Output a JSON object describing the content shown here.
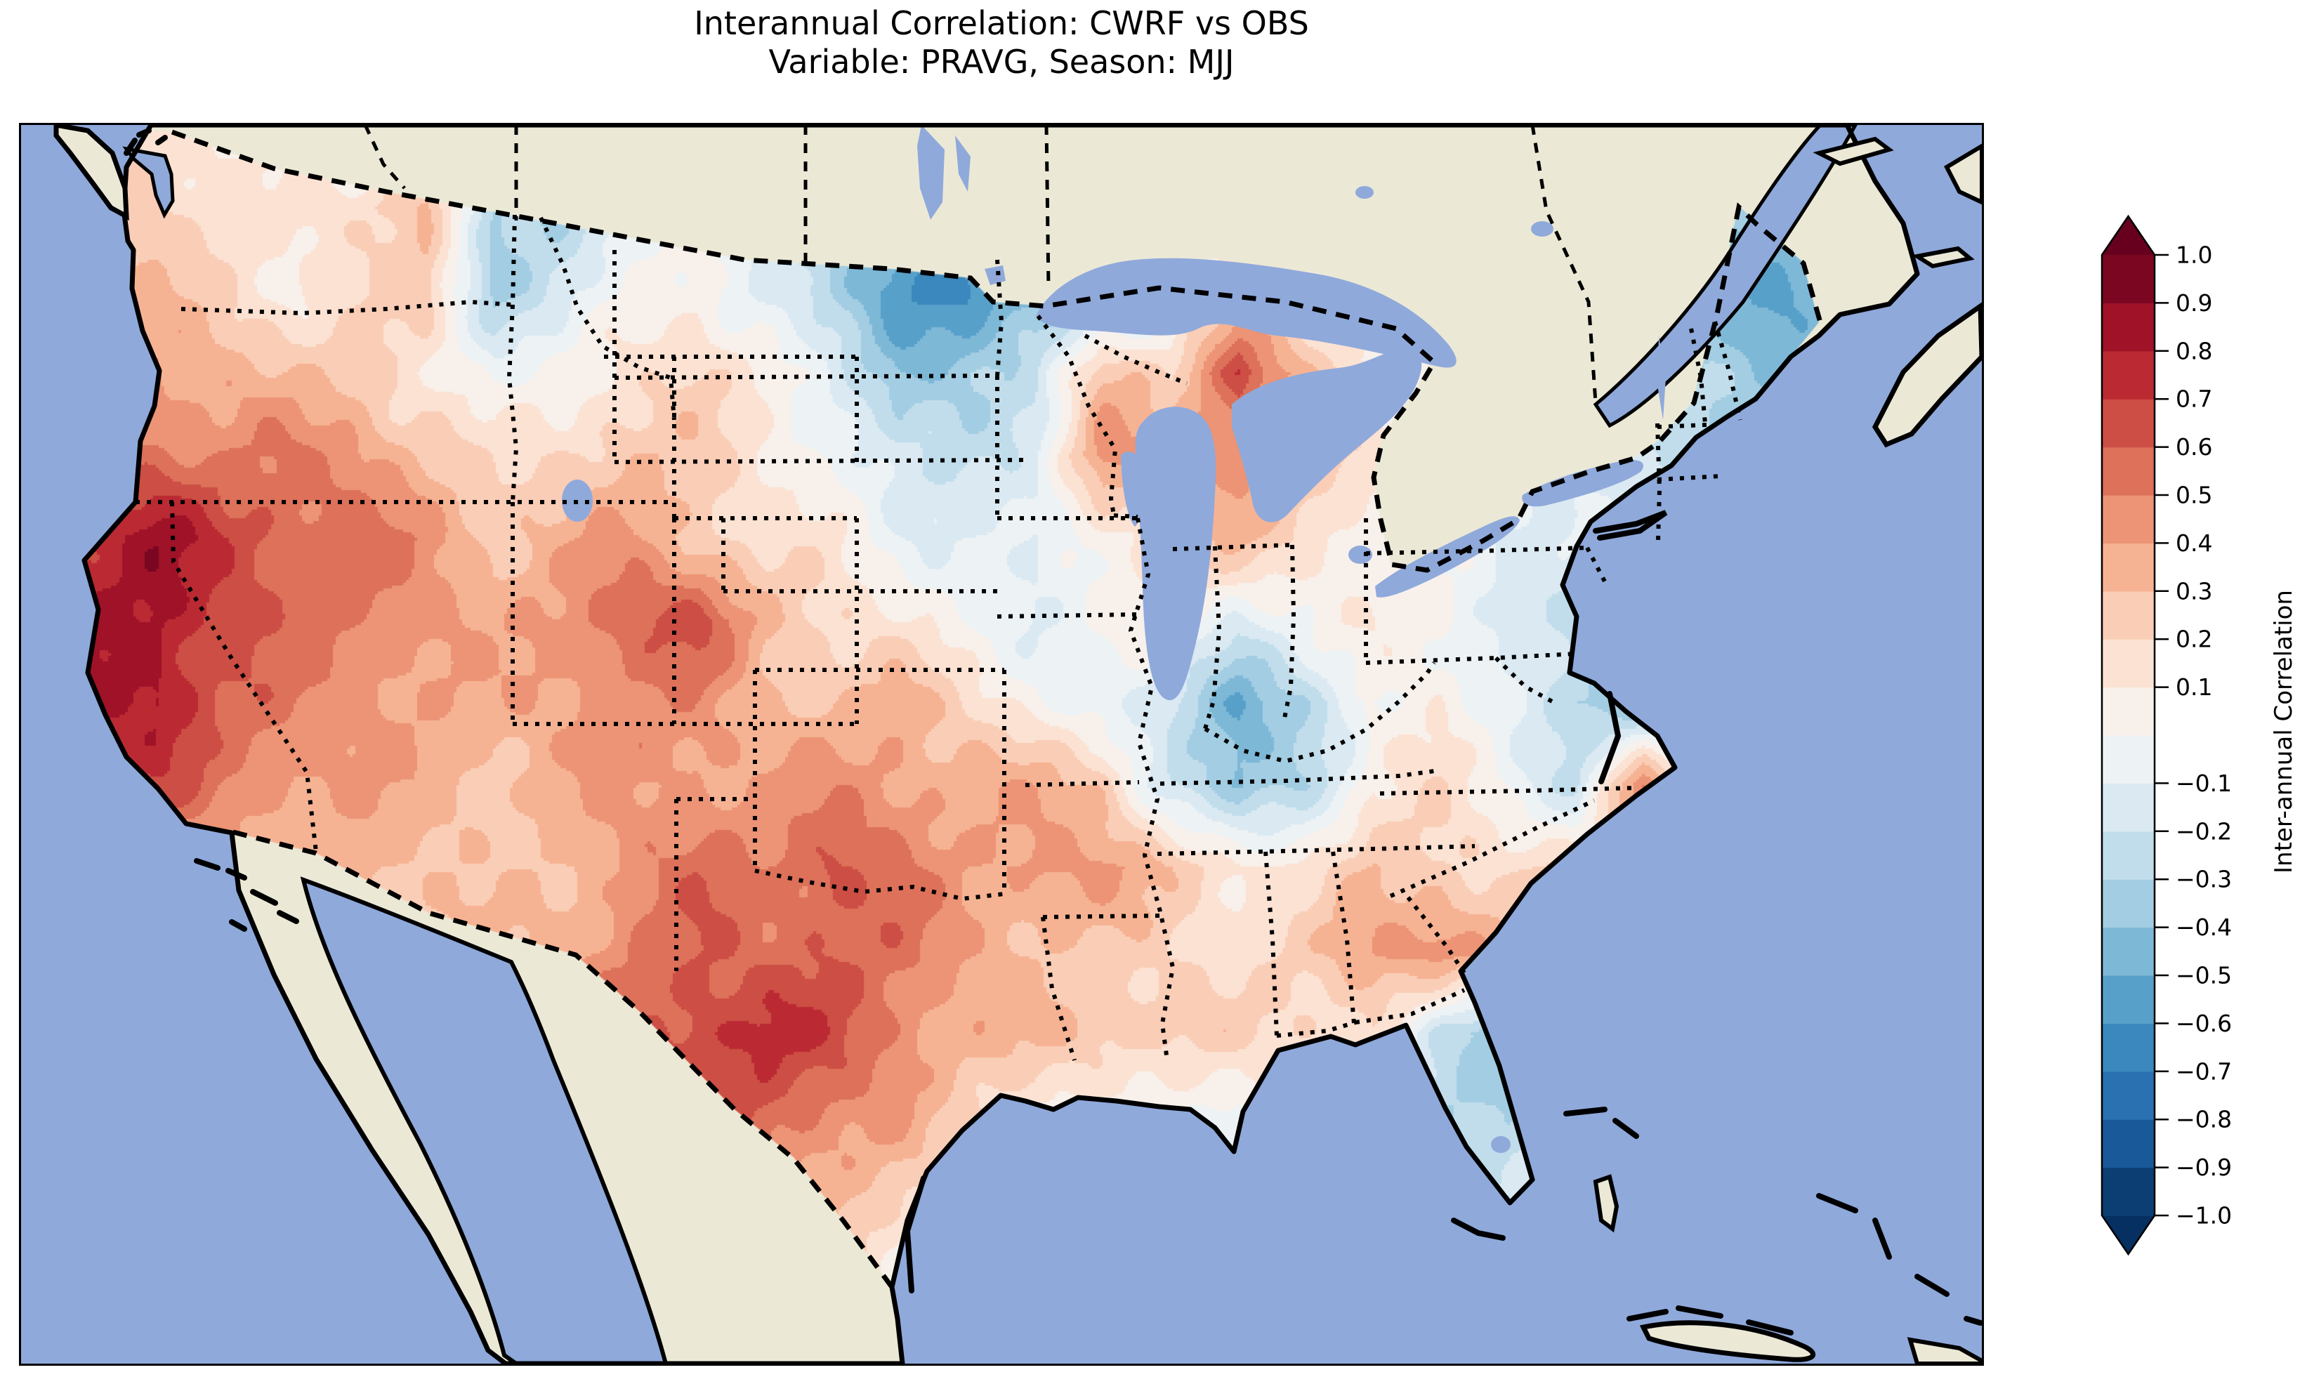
{
  "title": {
    "line1": "Interannual Correlation: CWRF vs OBS",
    "line2": "Variable: PRAVG, Season: MJJ"
  },
  "colorbar": {
    "label": "Inter-annual Correlation",
    "tick_labels": [
      "1.0",
      "0.9",
      "0.8",
      "0.7",
      "0.6",
      "0.5",
      "0.4",
      "0.3",
      "0.2",
      "0.1",
      "−0.1",
      "−0.2",
      "−0.3",
      "−0.4",
      "−0.5",
      "−0.6",
      "−0.7",
      "−0.8",
      "−0.9",
      "−1.0"
    ],
    "tick_values": [
      1.0,
      0.9,
      0.8,
      0.7,
      0.6,
      0.5,
      0.4,
      0.3,
      0.2,
      0.1,
      -0.1,
      -0.2,
      -0.3,
      -0.4,
      -0.5,
      -0.6,
      -0.7,
      -0.8,
      -0.9,
      -1.0
    ],
    "band_colors": [
      "#0c3e74",
      "#1a5999",
      "#2a71b2",
      "#3a88bd",
      "#57a0ca",
      "#7eb8d7",
      "#a2cde2",
      "#c1ddec",
      "#dae9f2",
      "#edf2f5",
      "#f8f0eb",
      "#fbe2d3",
      "#facdb6",
      "#f6b393",
      "#ec9475",
      "#dd715a",
      "#cd4e44",
      "#bb2a33",
      "#9f1228",
      "#7a0622"
    ],
    "under_color": "#053061",
    "over_color": "#67001f"
  },
  "map_colors": {
    "ocean": "#8fa9db",
    "land": "#ebe9d6",
    "lake": "#8fa9db",
    "coast": "#000000",
    "border": "#000000"
  },
  "chart_data": {
    "type": "heatmap",
    "title": "Interannual Correlation: CWRF vs OBS",
    "subtitle": "Variable: PRAVG, Season: MJJ",
    "model": "CWRF",
    "reference": "OBS",
    "variable": "PRAVG",
    "season": "MJJ",
    "region": "Contiguous United States",
    "colorbar_label": "Inter-annual Correlation",
    "value_range": [
      -1.0,
      1.0
    ],
    "contour_interval": 0.1,
    "colormap": "RdBu_r (blue = negative, red = positive), extended arrows both ends",
    "grid_rows": 16,
    "grid_cols": 30,
    "values": [
      [
        0.2,
        0.2,
        0.2,
        0.1,
        0,
        -0.1,
        0.2,
        -0.3,
        -0.2,
        0,
        0,
        -0.1,
        -0.2,
        -0.3,
        -0.4,
        -0.4,
        -0.2,
        0,
        0.1,
        0,
        0,
        0,
        0,
        -0.1,
        -0.2,
        -0.3,
        -0.3,
        -0.2,
        0,
        0
      ],
      [
        0.1,
        0.2,
        0.25,
        0.15,
        0.1,
        0.2,
        0.35,
        -0.35,
        -0.3,
        -0.1,
        0.05,
        -0.1,
        -0.3,
        -0.45,
        -0.5,
        -0.45,
        -0.25,
        -0.1,
        0.1,
        0.05,
        0,
        0,
        0,
        -0.1,
        -0.2,
        -0.35,
        -0.4,
        -0.35,
        0,
        0
      ],
      [
        0.15,
        0.25,
        0.3,
        0.2,
        0.1,
        0.15,
        0.25,
        -0.3,
        -0.2,
        0,
        0.1,
        -0.15,
        -0.35,
        -0.55,
        -0.65,
        -0.5,
        -0.3,
        -0.15,
        0.2,
        0.1,
        0.05,
        0,
        0,
        -0.1,
        -0.25,
        -0.4,
        -0.5,
        -0.45,
        0,
        0
      ],
      [
        0.2,
        0.3,
        0.4,
        0.35,
        0.3,
        0.25,
        0.1,
        -0.05,
        0.05,
        0.15,
        0.2,
        0.1,
        -0.1,
        -0.45,
        -0.35,
        -0.2,
        0.3,
        0.2,
        0.7,
        0.3,
        0.1,
        0.05,
        -0.05,
        -0.15,
        -0.2,
        -0.3,
        -0.45,
        -0.4,
        0,
        0
      ],
      [
        0.3,
        0.5,
        0.55,
        0.5,
        0.5,
        0.45,
        0.3,
        0.15,
        0.2,
        0.3,
        0.25,
        0.1,
        0,
        -0.2,
        -0.25,
        -0.1,
        0.45,
        0.35,
        0.5,
        0.3,
        0.15,
        0,
        -0.1,
        -0.1,
        -0.15,
        -0.3,
        -0.4,
        -0.35,
        0,
        0
      ],
      [
        0.5,
        0.75,
        0.85,
        0.7,
        0.6,
        0.55,
        0.45,
        0.3,
        0.35,
        0.4,
        0.3,
        0.15,
        0.1,
        -0.05,
        -0.1,
        -0.15,
        0.1,
        0.2,
        0.3,
        0.2,
        0.05,
        -0.05,
        -0.1,
        -0.05,
        -0.2,
        -0.25,
        -0.3,
        -0.25,
        0,
        0
      ],
      [
        0.55,
        0.8,
        0.85,
        0.65,
        0.55,
        0.5,
        0.45,
        0.35,
        0.45,
        0.6,
        0.65,
        0.35,
        0.2,
        0.1,
        0,
        -0.1,
        0,
        0.1,
        -0.1,
        0,
        0.1,
        0.05,
        -0.15,
        -0.25,
        -0.35,
        -0.2,
        -0.15,
        -0.1,
        0,
        0
      ],
      [
        0.5,
        0.8,
        0.85,
        0.6,
        0.5,
        0.45,
        0.4,
        0.35,
        0.4,
        0.5,
        0.45,
        0.3,
        0.3,
        0.35,
        0.2,
        0.05,
        -0.1,
        -0.2,
        -0.5,
        -0.3,
        0,
        0.1,
        -0.1,
        -0.3,
        -0.5,
        -0.3,
        -0.2,
        -0.15,
        0,
        0
      ],
      [
        0.4,
        0.6,
        0.65,
        0.5,
        0.45,
        0.4,
        0.35,
        0.3,
        0.35,
        0.4,
        0.45,
        0.4,
        0.45,
        0.45,
        0.35,
        0.35,
        0.3,
        -0.2,
        -0.45,
        -0.25,
        0.1,
        0.15,
        0,
        -0.2,
        0.5,
        -0.15,
        -0.1,
        0,
        0,
        0
      ],
      [
        0.2,
        0.3,
        0.35,
        0.3,
        0.3,
        0.35,
        0.3,
        0.25,
        0.3,
        0.45,
        0.55,
        0.5,
        0.65,
        0.5,
        0.4,
        0.45,
        0.4,
        0.3,
        0.15,
        0.1,
        0.3,
        0.25,
        0.15,
        0.2,
        0.35,
        0.3,
        0,
        0,
        0,
        0
      ],
      [
        0,
        0.1,
        0.2,
        0.25,
        0.3,
        0.3,
        0.3,
        0.3,
        0.35,
        0.5,
        0.6,
        0.55,
        0.6,
        0.55,
        0.4,
        0.3,
        0.25,
        0.2,
        0.15,
        0.25,
        0.4,
        0.5,
        0.35,
        0.2,
        0.3,
        0,
        0,
        0,
        0,
        0
      ],
      [
        0,
        0,
        0.1,
        0.2,
        0.25,
        0.3,
        0.3,
        0.3,
        0.4,
        0.55,
        0.7,
        0.75,
        0.65,
        0.5,
        0.35,
        0.3,
        0.3,
        0.25,
        0.2,
        0.2,
        0.2,
        -0.3,
        -0.45,
        -0.2,
        0,
        0,
        0,
        0,
        0,
        0
      ],
      [
        0,
        0,
        0,
        0.1,
        0.2,
        0.25,
        0.3,
        0.3,
        0.45,
        0.6,
        0.65,
        0.6,
        0.5,
        0.4,
        0.2,
        0.1,
        0,
        0,
        0,
        0,
        -0.1,
        -0.25,
        -0.3,
        -0.15,
        0,
        0,
        0,
        0,
        0,
        0
      ],
      [
        0,
        0,
        0,
        0,
        0.1,
        0.15,
        0.2,
        0.25,
        0.35,
        0.5,
        0.55,
        0.45,
        0.35,
        0.2,
        0,
        0,
        0,
        0,
        0,
        0,
        0,
        -0.15,
        -0.2,
        -0.1,
        0,
        0,
        0,
        0,
        0,
        0
      ],
      [
        0,
        0,
        0,
        0,
        0,
        0.1,
        0.1,
        0.15,
        0.25,
        0.4,
        0.45,
        0.35,
        0.2,
        0.1,
        0,
        0,
        0,
        0,
        0,
        0,
        0,
        -0.1,
        -0.15,
        -0.05,
        0,
        0,
        0,
        0,
        0,
        0
      ],
      [
        0,
        0,
        0,
        0,
        0,
        0,
        0,
        0,
        0,
        0,
        0,
        0,
        0,
        0,
        0,
        0,
        0,
        0,
        0,
        0,
        0,
        0,
        0,
        0,
        0,
        0,
        0,
        0,
        0,
        0
      ]
    ],
    "notable_features": [
      "Strong positive correlation (0.6–0.9) along the California coast and Great Basin",
      "Widespread positive correlation (0.4–0.8) over Texas, the southern Plains and the Southwest",
      "Strong negative correlation (−0.4 to −0.7) over eastern North Dakota and western Minnesota",
      "Negative correlations along New England, the Chesapeake Bay and mid-Atlantic region",
      "Localized strong positive spot (~0.8) near the tip of Michigan's Lower Peninsula",
      "Positive patch on the North Carolina coast (~0.5); negatives over northern Florida (~ −0.4)",
      "Weak mixed correlations over the central Midwest and Appalachia"
    ]
  }
}
